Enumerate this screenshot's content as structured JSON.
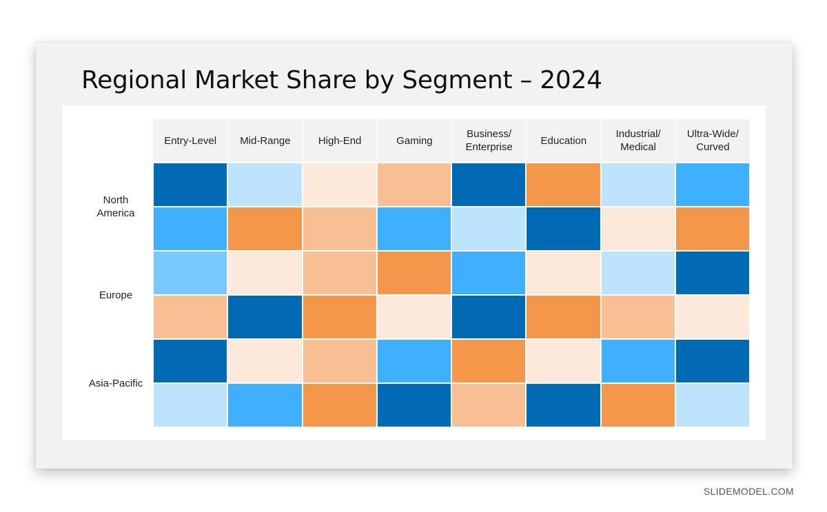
{
  "chart_data": {
    "type": "heatmap",
    "title": "Regional Market Share by Segment – 2024",
    "columns": [
      "Entry-Level",
      "Mid-Range",
      "High-End",
      "Gaming",
      "Business/\nEnterprise",
      "Education",
      "Industrial/\nMedical",
      "Ultra-Wide/\nCurved"
    ],
    "regions": [
      {
        "label": "North\nAmerica",
        "rows": 2
      },
      {
        "label": "Europe",
        "rows": 2
      },
      {
        "label": "Asia-Pacific",
        "rows": 2
      }
    ],
    "legend": {
      "dark-blue": "#006ab5",
      "blue": "#3eb0ff",
      "sky": "#78c8ff",
      "pale-blue": "#bee4fd",
      "cream": "#fce9db",
      "peach": "#f8c092",
      "orange": "#f5974a"
    },
    "cells": [
      [
        "dark-blue",
        "pale-blue",
        "cream",
        "peach",
        "dark-blue",
        "orange",
        "pale-blue",
        "blue"
      ],
      [
        "blue",
        "orange",
        "peach",
        "blue",
        "pale-blue",
        "dark-blue",
        "cream",
        "orange"
      ],
      [
        "sky",
        "cream",
        "peach",
        "orange",
        "blue",
        "cream",
        "pale-blue",
        "dark-blue"
      ],
      [
        "peach",
        "dark-blue",
        "orange",
        "cream",
        "dark-blue",
        "orange",
        "peach",
        "cream"
      ],
      [
        "dark-blue",
        "cream",
        "peach",
        "blue",
        "orange",
        "cream",
        "blue",
        "dark-blue"
      ],
      [
        "pale-blue",
        "blue",
        "orange",
        "dark-blue",
        "peach",
        "dark-blue",
        "orange",
        "pale-blue"
      ]
    ]
  },
  "footer": "SLIDEMODEL.COM"
}
